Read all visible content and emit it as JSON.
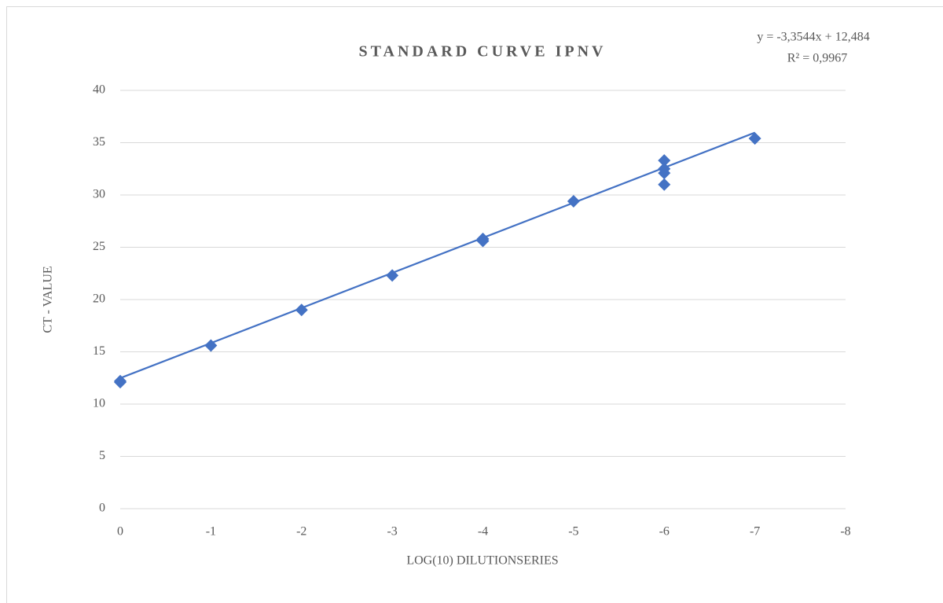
{
  "chart_data": {
    "type": "scatter",
    "title": "STANDARD CURVE IPNV",
    "x_label": "LOG(10) DILUTIONSERIES",
    "y_label": "CT - VALUE",
    "x": [
      0,
      0,
      -1,
      -2,
      -3,
      -4,
      -4,
      -5,
      -6,
      -6,
      -6,
      -6,
      -7
    ],
    "values": [
      12.1,
      12.2,
      15.6,
      19.0,
      22.3,
      25.8,
      25.6,
      29.4,
      33.3,
      32.5,
      32.1,
      31.0,
      35.4
    ],
    "color": "#4472c4",
    "xlim": [
      0,
      -8
    ],
    "xticks": [
      0,
      -1,
      -2,
      -3,
      -4,
      -5,
      -6,
      -7,
      -8
    ],
    "ylim": [
      0,
      40
    ],
    "yticks": [
      0,
      5,
      10,
      15,
      20,
      25,
      30,
      35,
      40
    ],
    "grid": true,
    "trendline": {
      "label": "y = -3,3544x + 12,484",
      "r2_label": "R² = 0,9967",
      "slope": -3.3544,
      "intercept": 12.484
    }
  }
}
